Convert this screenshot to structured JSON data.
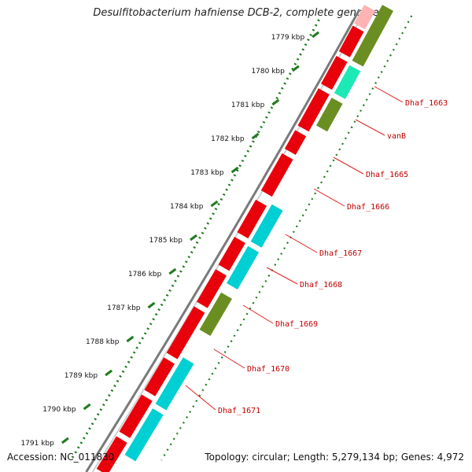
{
  "title": "Desulfitobacterium hafniense DCB-2, complete genome",
  "footer": {
    "accession": "Accession: NC_011830",
    "topology": "Topology: circular; Length: 5,279,134 bp; Genes: 4,972"
  },
  "colors": {
    "cds_red": "#e8000b",
    "gene_olive": "#6b8e23",
    "gene_cyan": "#00cfd4",
    "gene_teal": "#1de9b6",
    "label_red": "#c00000",
    "tick_green": "#1f7a1f",
    "backbone": "#7a7a7a"
  },
  "scale": {
    "labels": [
      "1779 kbp",
      "1780 kbp",
      "1781 kbp",
      "1782 kbp",
      "1783 kbp",
      "1784 kbp",
      "1785 kbp",
      "1786 kbp",
      "1787 kbp",
      "1788 kbp",
      "1789 kbp",
      "1790 kbp",
      "1791 kbp"
    ]
  },
  "gene_labels": [
    "Dhaf_1663",
    "vanB",
    "Dhaf_1665",
    "Dhaf_1666",
    "Dhaf_1667",
    "Dhaf_1668",
    "Dhaf_1669",
    "Dhaf_1670",
    "Dhaf_1671"
  ]
}
